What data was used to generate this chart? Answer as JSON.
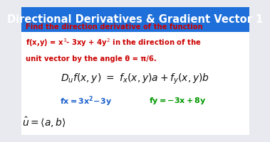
{
  "title": "Directional Derivatives & Gradient Vector 1",
  "title_bg": "#1e6fd9",
  "title_color": "#ffffff",
  "body_bg": "#e8eaf0",
  "problem_text_color": "#cc0000",
  "problem_line1": "Find the direction derivative of the function",
  "problem_line2_a": "f(x,y) = x",
  "problem_line2_b": "3",
  "problem_line2_c": "- 3xy + 4y",
  "problem_line2_d": "2",
  "problem_line2_e": " in the direction of the",
  "problem_line3": "unit vector by the angle θ = π/6.",
  "formula_color": "#111111",
  "fx_color": "#1a5fcc",
  "fy_color": "#009900",
  "uhat_color": "#111111",
  "title_fontsize": 10.5,
  "body_fontsize": 7.2,
  "formula_fontsize": 10,
  "fxfy_fontsize": 8,
  "uhat_fontsize": 10
}
